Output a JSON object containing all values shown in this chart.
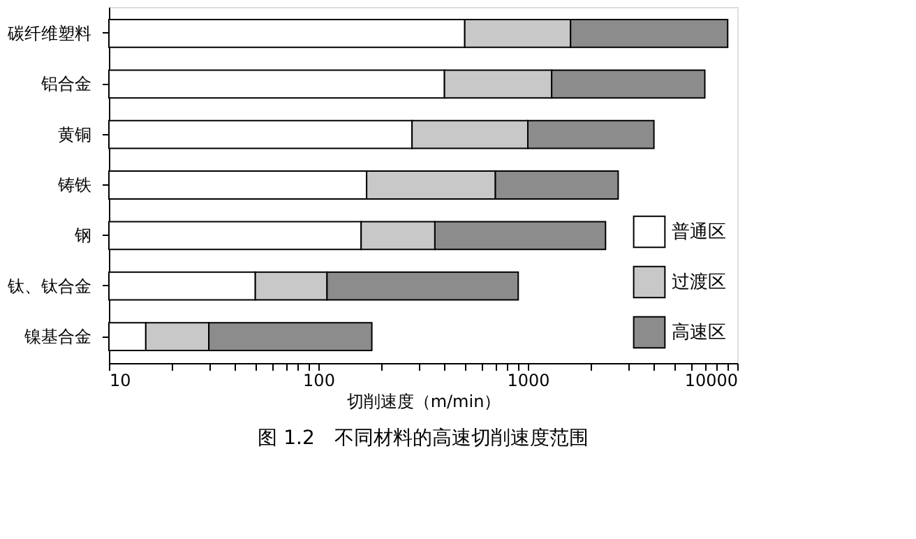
{
  "chart_data": {
    "type": "bar",
    "orientation": "horizontal",
    "title": "图 1.2　不同材料的高速切削速度范围",
    "xlabel": "切削速度（m/min）",
    "categories": [
      "碳纤维塑料",
      "铝合金",
      "黄铜",
      "铸铁",
      "钢",
      "钛、钛合金",
      "镍基合金"
    ],
    "series": [
      {
        "name": "普通区",
        "color": "#ffffff",
        "base": [
          10,
          10,
          10,
          10,
          10,
          10,
          10
        ],
        "values": [
          490,
          390,
          270,
          160,
          150,
          40,
          5
        ]
      },
      {
        "name": "过渡区",
        "color": "#c8c8c8",
        "base": [
          500,
          400,
          280,
          170,
          160,
          50,
          15
        ],
        "values": [
          1100,
          900,
          720,
          530,
          200,
          60,
          15
        ]
      },
      {
        "name": "高速区",
        "color": "#8c8c8c",
        "base": [
          1600,
          1300,
          1000,
          700,
          360,
          110,
          30
        ],
        "values": [
          7400,
          5700,
          3000,
          2000,
          1990,
          790,
          150
        ]
      }
    ],
    "log": "x",
    "xlim": [
      10,
      10000
    ],
    "xticks": [
      10,
      {
        "value": 20,
        "label": null
      },
      {
        "value": 30,
        "label": null
      },
      {
        "value": 40,
        "label": null
      },
      {
        "value": 50,
        "label": null
      },
      {
        "value": 60,
        "label": null
      },
      {
        "value": 70,
        "label": null
      },
      {
        "value": 80,
        "label": null
      },
      {
        "value": 90,
        "label": null
      },
      100,
      {
        "value": 200,
        "label": null
      },
      {
        "value": 300,
        "label": null
      },
      {
        "value": 400,
        "label": null
      },
      {
        "value": 500,
        "label": null
      },
      {
        "value": 600,
        "label": null
      },
      {
        "value": 700,
        "label": null
      },
      {
        "value": 800,
        "label": null
      },
      {
        "value": 900,
        "label": null
      },
      1000,
      {
        "value": 2000,
        "label": null
      },
      {
        "value": 3000,
        "label": null
      },
      {
        "value": 4000,
        "label": null
      },
      {
        "value": 5000,
        "label": null
      },
      {
        "value": 6000,
        "label": null
      },
      {
        "value": 7000,
        "label": null
      },
      {
        "value": 8000,
        "label": null
      },
      {
        "value": 9000,
        "label": null
      },
      10000
    ],
    "grid": false,
    "legend": "bottom right"
  }
}
